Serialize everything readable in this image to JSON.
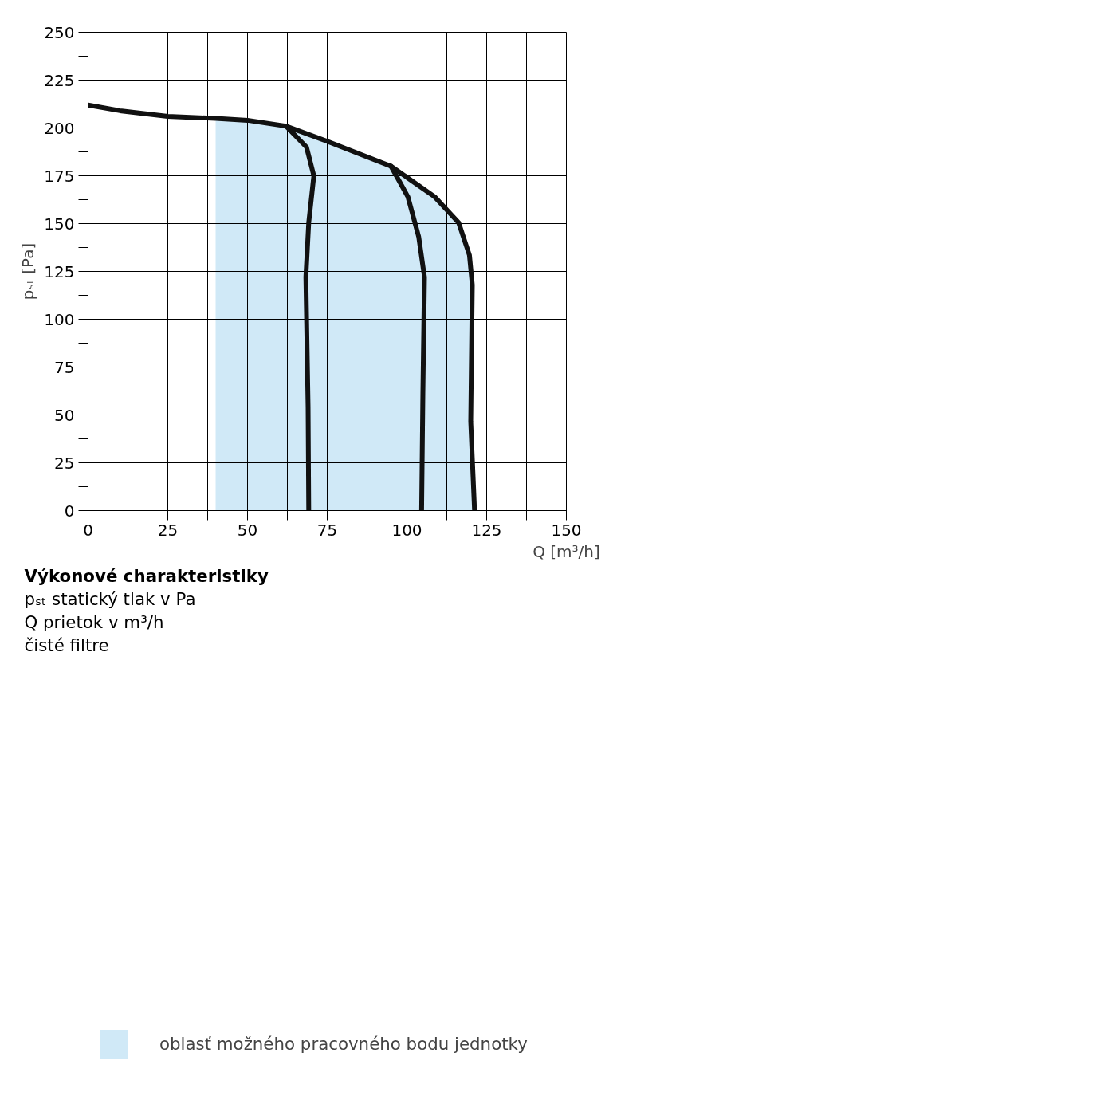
{
  "chart_data": {
    "type": "line",
    "xlabel": "Q [m³/h]",
    "ylabel": "pₛₜ [Pa]",
    "xlim": [
      0,
      150
    ],
    "ylim": [
      0,
      250
    ],
    "xticks": [
      0,
      {
        "value": 12.5,
        "label": null
      },
      25,
      {
        "value": 37.5,
        "label": null
      },
      50,
      {
        "value": 62.5,
        "label": null
      },
      75,
      {
        "value": 87.5,
        "label": null
      },
      100,
      {
        "value": 112.5,
        "label": null
      },
      125,
      {
        "value": 137.5,
        "label": null
      },
      150
    ],
    "yticks": [
      0,
      {
        "value": 12.5,
        "label": null
      },
      25,
      {
        "value": 37.5,
        "label": null
      },
      50,
      {
        "value": 62.5,
        "label": null
      },
      75,
      {
        "value": 87.5,
        "label": null
      },
      100,
      {
        "value": 112.5,
        "label": null
      },
      125,
      {
        "value": 137.5,
        "label": null
      },
      150,
      {
        "value": 162.5,
        "label": null
      },
      175,
      {
        "value": 187.5,
        "label": null
      },
      200,
      {
        "value": 212.5,
        "label": null
      },
      225,
      {
        "value": 237.5,
        "label": null
      },
      250
    ],
    "grid": true,
    "legend": "bottom",
    "series": [
      {
        "type": "area",
        "name": "oblasť možného pracovného bodu jednotky",
        "color": "#d0e9f7",
        "x": [
          40,
          50,
          62,
          75,
          95,
          108.7,
          116.2,
          119.6,
          120.5,
          120,
          121.2
        ],
        "values": [
          205,
          204,
          201,
          193,
          180,
          164,
          150.5,
          133.5,
          118,
          46.5,
          0
        ]
      },
      {
        "color": "#111111",
        "x": [
          0,
          10,
          25,
          40,
          50,
          62,
          75,
          95,
          108.7,
          116.2,
          119.6,
          120.5,
          120,
          121.2
        ],
        "values": [
          212,
          209,
          206,
          205,
          204,
          201,
          193,
          180,
          164,
          150.5,
          133.5,
          118,
          46.5,
          0
        ]
      },
      {
        "color": "#111111",
        "x": [
          62.2,
          68.5,
          70.8,
          69.2,
          68.3,
          69,
          69.2
        ],
        "values": [
          200.8,
          190,
          175,
          150.5,
          122,
          54,
          0
        ]
      },
      {
        "color": "#111111",
        "x": [
          95,
          100.3,
          103.7,
          105.5,
          105,
          104.6
        ],
        "values": [
          180,
          164,
          143,
          122,
          61.6,
          0
        ]
      }
    ],
    "annotations": [
      "Výkonové charakteristiky",
      "pₛₜ statický tlak v Pa",
      "Q prietok v m³/h",
      "čisté filtre"
    ]
  }
}
